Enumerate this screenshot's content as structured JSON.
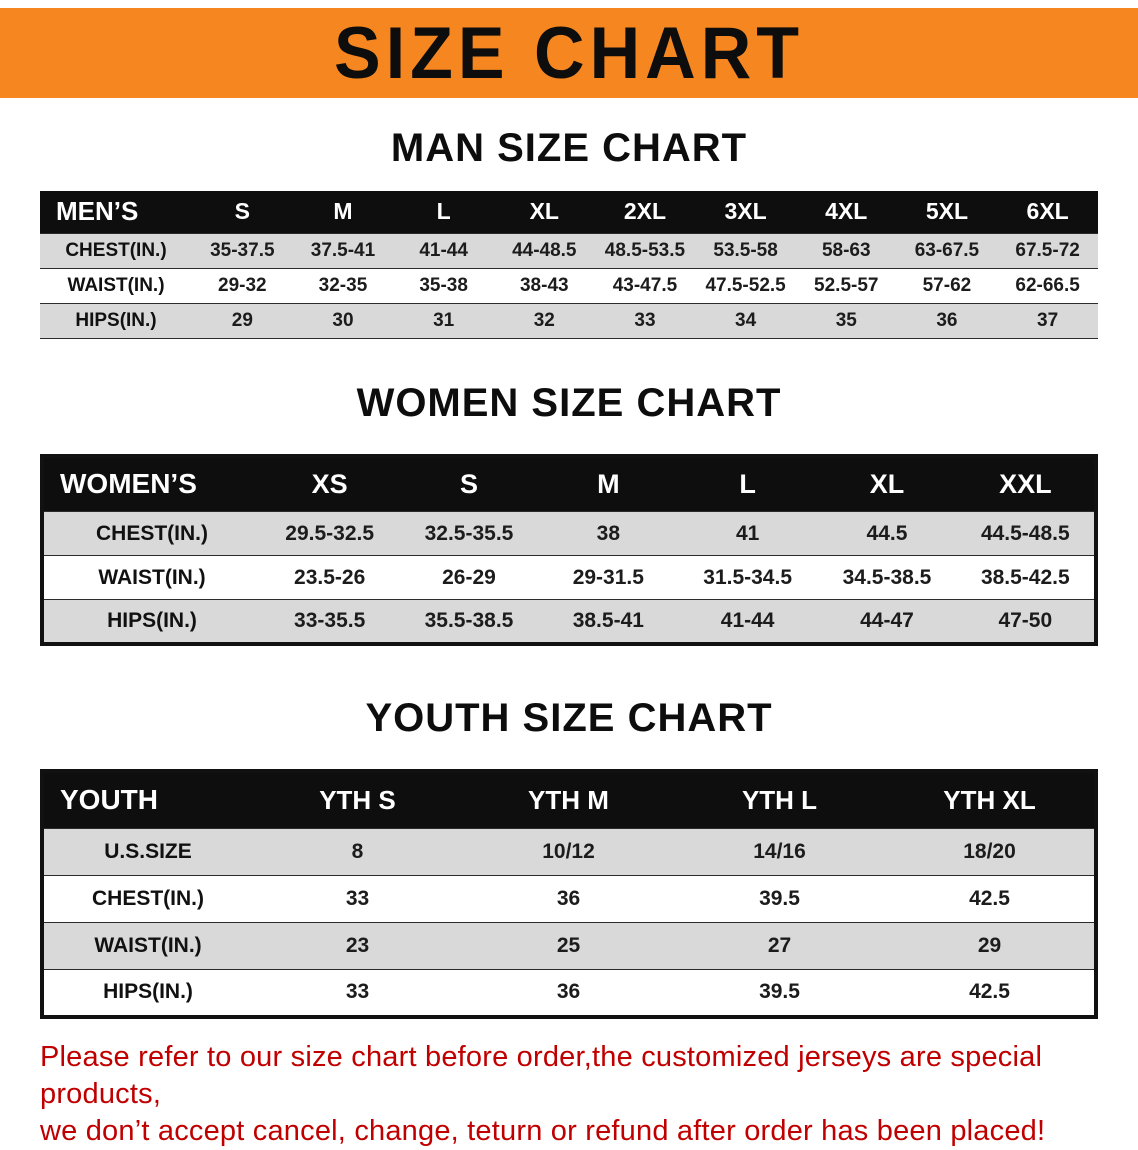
{
  "banner": {
    "title": "SIZE CHART"
  },
  "colors": {
    "banner_orange": "#F6861F",
    "table_header_black": "#0e0e0e",
    "row_gray": "#d9d9d9",
    "disclaimer_red": "#C00000"
  },
  "sections": [
    {
      "heading": "MAN SIZE CHART",
      "table": {
        "header": [
          "MEN’S",
          "S",
          "M",
          "L",
          "XL",
          "2XL",
          "3XL",
          "4XL",
          "5XL",
          "6XL"
        ],
        "rows": [
          [
            "CHEST(IN.)",
            "35-37.5",
            "37.5-41",
            "41-44",
            "44-48.5",
            "48.5-53.5",
            "53.5-58",
            "58-63",
            "63-67.5",
            "67.5-72"
          ],
          [
            "WAIST(IN.)",
            "29-32",
            "32-35",
            "35-38",
            "38-43",
            "43-47.5",
            "47.5-52.5",
            "52.5-57",
            "57-62",
            "62-66.5"
          ],
          [
            "HIPS(IN.)",
            "29",
            "30",
            "31",
            "32",
            "33",
            "34",
            "35",
            "36",
            "37"
          ]
        ]
      }
    },
    {
      "heading": "WOMEN SIZE CHART",
      "table": {
        "header": [
          "WOMEN’S",
          "XS",
          "S",
          "M",
          "L",
          "XL",
          "XXL"
        ],
        "rows": [
          [
            "CHEST(IN.)",
            "29.5-32.5",
            "32.5-35.5",
            "38",
            "41",
            "44.5",
            "44.5-48.5"
          ],
          [
            "WAIST(IN.)",
            "23.5-26",
            "26-29",
            "29-31.5",
            "31.5-34.5",
            "34.5-38.5",
            "38.5-42.5"
          ],
          [
            "HIPS(IN.)",
            "33-35.5",
            "35.5-38.5",
            "38.5-41",
            "41-44",
            "44-47",
            "47-50"
          ]
        ]
      }
    },
    {
      "heading": "YOUTH SIZE CHART",
      "table": {
        "header": [
          "YOUTH",
          "YTH S",
          "YTH M",
          "YTH L",
          "YTH XL"
        ],
        "rows": [
          [
            "U.S.SIZE",
            "8",
            "10/12",
            "14/16",
            "18/20"
          ],
          [
            "CHEST(IN.)",
            "33",
            "36",
            "39.5",
            "42.5"
          ],
          [
            "WAIST(IN.)",
            "23",
            "25",
            "27",
            "29"
          ],
          [
            "HIPS(IN.)",
            "33",
            "36",
            "39.5",
            "42.5"
          ]
        ]
      }
    }
  ],
  "disclaimer": {
    "line1": "Please refer to our size chart before order,the customized jerseys are special products,",
    "line2": "we don’t accept cancel, change, teturn or refund after order has been placed!"
  }
}
